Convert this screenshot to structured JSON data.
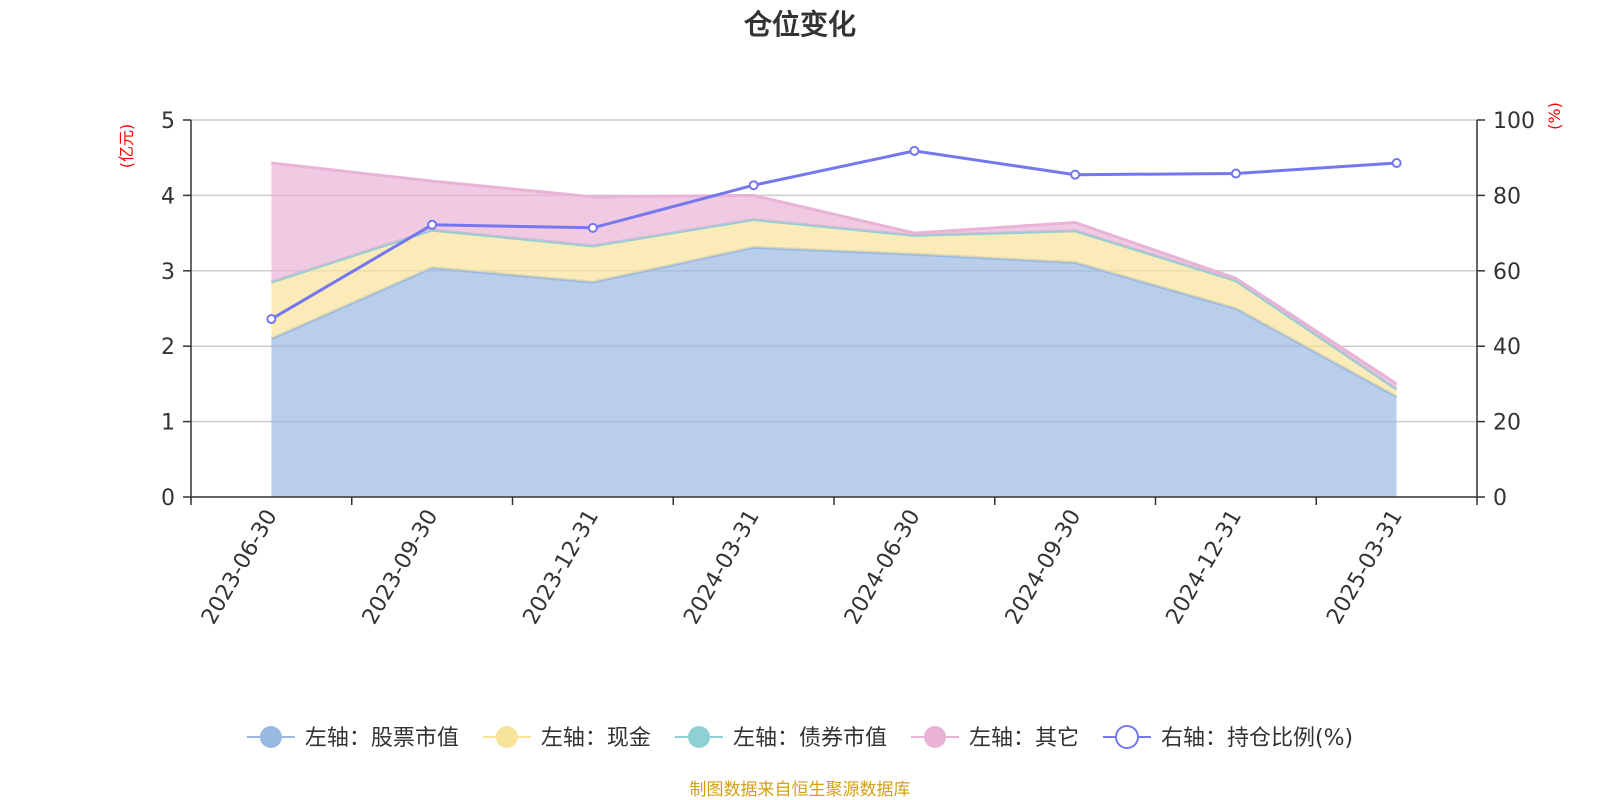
{
  "chart_data": {
    "type": "area",
    "title": "仓位变化",
    "categories": [
      "2023-06-30",
      "2023-09-30",
      "2023-12-31",
      "2024-03-31",
      "2024-06-30",
      "2024-09-30",
      "2024-12-31",
      "2025-03-31"
    ],
    "left_axis": {
      "unit": "(亿元)",
      "ylim": [
        0,
        5
      ],
      "ticks": [
        "0",
        "1",
        "2",
        "3",
        "4",
        "5"
      ]
    },
    "right_axis": {
      "unit": "(%)",
      "ylim": [
        0,
        100
      ],
      "ticks": [
        "0",
        "20",
        "40",
        "60",
        "80",
        "100"
      ]
    },
    "stacked": true,
    "grid": true,
    "legend_position": "bottom",
    "series": [
      {
        "name": "左轴：股票市值",
        "axis": "left",
        "kind": "area",
        "color": "#9ab9e2",
        "values": [
          2.1,
          3.04,
          2.85,
          3.31,
          3.22,
          3.11,
          2.5,
          1.33
        ]
      },
      {
        "name": "左轴：现金",
        "axis": "left",
        "kind": "area",
        "color": "#f8e39b",
        "values": [
          0.75,
          0.5,
          0.48,
          0.37,
          0.25,
          0.42,
          0.37,
          0.1
        ]
      },
      {
        "name": "左轴：债券市值",
        "axis": "left",
        "kind": "area",
        "color": "#8ed0d4",
        "values": [
          0,
          0,
          0,
          0,
          0,
          0,
          0,
          0
        ]
      },
      {
        "name": "左轴：其它",
        "axis": "left",
        "kind": "area",
        "color": "#e9b3d6",
        "values": [
          1.58,
          0.65,
          0.65,
          0.32,
          0.03,
          0.11,
          0.03,
          0.07
        ]
      },
      {
        "name": "右轴：持仓比例(%)",
        "axis": "right",
        "kind": "line",
        "color": "#7577ee",
        "values": [
          47.2,
          72.2,
          71.4,
          82.7,
          91.8,
          85.5,
          85.8,
          88.6
        ]
      }
    ],
    "source": "制图数据来自恒生聚源数据库"
  }
}
